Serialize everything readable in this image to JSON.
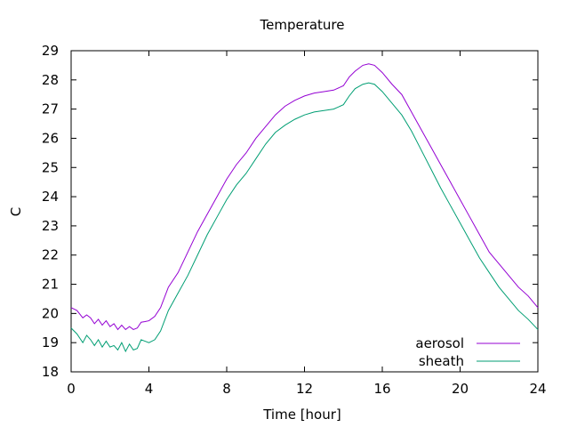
{
  "chart_data": {
    "type": "line",
    "title": "Temperature",
    "xlabel": "Time [hour]",
    "ylabel": "C",
    "xlim": [
      0,
      24
    ],
    "ylim": [
      18,
      29
    ],
    "xticks": [
      0,
      4,
      8,
      12,
      16,
      20,
      24
    ],
    "yticks": [
      18,
      19,
      20,
      21,
      22,
      23,
      24,
      25,
      26,
      27,
      28,
      29
    ],
    "grid": false,
    "legend": "bottom-right",
    "series": [
      {
        "name": "aerosol",
        "color": "#9400d3",
        "x": [
          0,
          0.3,
          0.6,
          0.8,
          1.0,
          1.2,
          1.4,
          1.6,
          1.8,
          2.0,
          2.2,
          2.4,
          2.6,
          2.8,
          3.0,
          3.2,
          3.4,
          3.6,
          3.8,
          4.0,
          4.3,
          4.6,
          5.0,
          5.5,
          6.0,
          6.5,
          7.0,
          7.5,
          8.0,
          8.5,
          9.0,
          9.5,
          10.0,
          10.5,
          11.0,
          11.5,
          12.0,
          12.5,
          13.0,
          13.5,
          14.0,
          14.3,
          14.6,
          15.0,
          15.3,
          15.6,
          16.0,
          16.5,
          17.0,
          17.5,
          18.0,
          18.5,
          19.0,
          19.5,
          20.0,
          20.5,
          21.0,
          21.5,
          22.0,
          22.5,
          23.0,
          23.5,
          24.0
        ],
        "values": [
          20.2,
          20.1,
          19.85,
          19.95,
          19.85,
          19.65,
          19.8,
          19.6,
          19.75,
          19.55,
          19.65,
          19.45,
          19.6,
          19.45,
          19.55,
          19.45,
          19.5,
          19.7,
          19.72,
          19.75,
          19.9,
          20.2,
          20.9,
          21.4,
          22.1,
          22.8,
          23.4,
          24.0,
          24.6,
          25.1,
          25.5,
          26.0,
          26.4,
          26.8,
          27.1,
          27.3,
          27.45,
          27.55,
          27.6,
          27.65,
          27.8,
          28.1,
          28.3,
          28.5,
          28.55,
          28.5,
          28.25,
          27.85,
          27.5,
          26.9,
          26.3,
          25.7,
          25.1,
          24.5,
          23.9,
          23.3,
          22.7,
          22.1,
          21.7,
          21.3,
          20.9,
          20.6,
          20.2
        ]
      },
      {
        "name": "sheath",
        "color": "#009e73",
        "x": [
          0,
          0.3,
          0.6,
          0.8,
          1.0,
          1.2,
          1.4,
          1.6,
          1.8,
          2.0,
          2.2,
          2.4,
          2.6,
          2.8,
          3.0,
          3.2,
          3.4,
          3.6,
          3.8,
          4.0,
          4.3,
          4.6,
          5.0,
          5.5,
          6.0,
          6.5,
          7.0,
          7.5,
          8.0,
          8.5,
          9.0,
          9.5,
          10.0,
          10.5,
          11.0,
          11.5,
          12.0,
          12.5,
          13.0,
          13.5,
          14.0,
          14.3,
          14.6,
          15.0,
          15.3,
          15.6,
          16.0,
          16.5,
          17.0,
          17.5,
          18.0,
          18.5,
          19.0,
          19.5,
          20.0,
          20.5,
          21.0,
          21.5,
          22.0,
          22.5,
          23.0,
          23.5,
          24.0
        ],
        "values": [
          19.5,
          19.3,
          19.0,
          19.25,
          19.1,
          18.9,
          19.1,
          18.85,
          19.05,
          18.85,
          18.9,
          18.75,
          19.0,
          18.7,
          18.95,
          18.75,
          18.8,
          19.1,
          19.05,
          19.0,
          19.1,
          19.4,
          20.1,
          20.7,
          21.3,
          22.0,
          22.7,
          23.3,
          23.9,
          24.4,
          24.8,
          25.3,
          25.8,
          26.2,
          26.45,
          26.65,
          26.8,
          26.9,
          26.95,
          27.0,
          27.15,
          27.45,
          27.7,
          27.85,
          27.9,
          27.85,
          27.6,
          27.2,
          26.8,
          26.25,
          25.6,
          24.95,
          24.3,
          23.7,
          23.1,
          22.5,
          21.9,
          21.4,
          20.9,
          20.5,
          20.1,
          19.8,
          19.45
        ]
      }
    ]
  }
}
